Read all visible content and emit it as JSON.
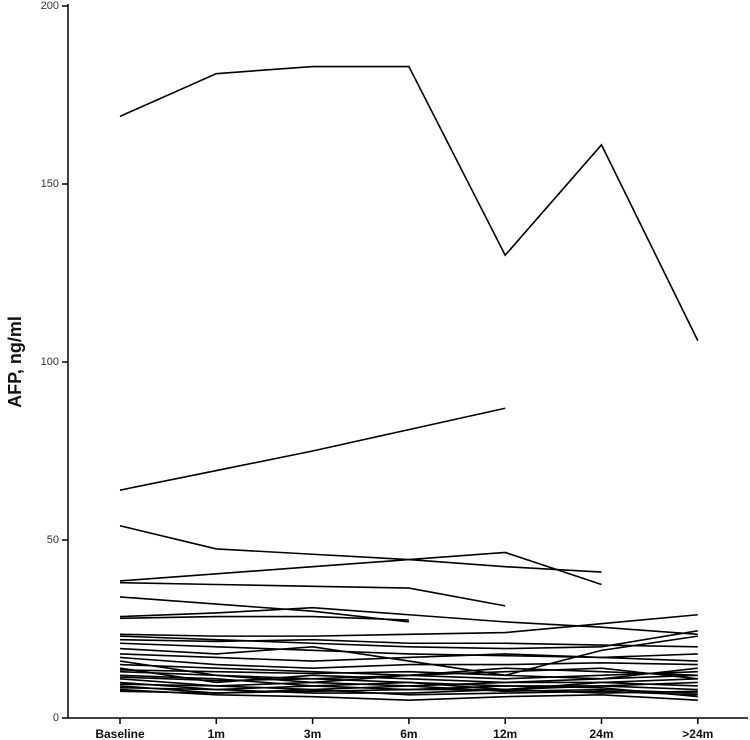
{
  "chart_data": {
    "type": "line",
    "y_label": "AFP, ng/ml",
    "color": "#000000",
    "categories": [
      "Baseline",
      "1m",
      "3m",
      "6m",
      "12m",
      "24m",
      ">24m"
    ],
    "ylim": [
      0,
      200
    ],
    "yticks": [
      0,
      50,
      100,
      150,
      200
    ],
    "series": [
      {
        "values": [
          169,
          181,
          183,
          183,
          130,
          161,
          106
        ]
      },
      {
        "values": [
          64,
          69.5,
          75,
          81,
          87,
          null,
          null
        ]
      },
      {
        "values": [
          54,
          47.5,
          46,
          44.5,
          42.5,
          41,
          null
        ]
      },
      {
        "values": [
          38.5,
          40.5,
          42.5,
          44.5,
          46.5,
          37.5,
          null
        ]
      },
      {
        "values": [
          38,
          37.5,
          37,
          36.5,
          31.5,
          null,
          null
        ]
      },
      {
        "values": [
          34,
          32,
          30,
          27,
          null,
          null,
          null
        ]
      },
      {
        "values": [
          28.5,
          29.5,
          31,
          29,
          27,
          25.5,
          23.5
        ]
      },
      {
        "values": [
          28,
          28.5,
          28.5,
          27.5,
          null,
          null,
          null
        ]
      },
      {
        "values": [
          23.5,
          23,
          23,
          23.5,
          24,
          26.5,
          29
        ]
      },
      {
        "values": [
          23,
          22,
          21,
          20,
          19.5,
          20,
          24.5
        ]
      },
      {
        "values": [
          22,
          21.5,
          22,
          21,
          21,
          20.5,
          20
        ]
      },
      {
        "values": [
          21,
          20,
          19,
          18,
          17.5,
          17,
          18
        ]
      },
      {
        "values": [
          19.5,
          18,
          20,
          16,
          12,
          19,
          23
        ]
      },
      {
        "values": [
          18,
          17,
          16,
          17,
          18,
          17,
          16
        ]
      },
      {
        "values": [
          17,
          15,
          14,
          15,
          15,
          15.5,
          15
        ]
      },
      {
        "values": [
          16,
          12,
          10,
          12,
          14,
          13,
          12
        ]
      },
      {
        "values": [
          15,
          14,
          13,
          12,
          11,
          12,
          13
        ]
      },
      {
        "values": [
          14,
          10,
          12,
          11,
          10,
          10,
          9
        ]
      },
      {
        "values": [
          13,
          12,
          11,
          10,
          9,
          9,
          8
        ]
      },
      {
        "values": [
          12,
          11,
          9,
          10,
          8,
          10,
          11
        ]
      },
      {
        "values": [
          11,
          9,
          8,
          9,
          10,
          11,
          12
        ]
      },
      {
        "values": [
          10,
          8,
          9,
          8,
          8,
          9,
          10
        ]
      },
      {
        "values": [
          9.5,
          9,
          10,
          9,
          7.5,
          8,
          7
        ]
      },
      {
        "values": [
          9,
          7,
          7.5,
          8,
          9,
          8.5,
          6
        ]
      },
      {
        "values": [
          8.5,
          8,
          7,
          7,
          8,
          7,
          7.5
        ]
      },
      {
        "values": [
          8,
          6.5,
          6,
          5,
          6,
          6.5,
          5
        ]
      },
      {
        "values": [
          7.5,
          7,
          8,
          6.5,
          7,
          7.5,
          6.5
        ]
      },
      {
        "values": [
          13.5,
          13,
          12.5,
          13,
          12,
          11,
          14
        ]
      },
      {
        "values": [
          11.5,
          10.5,
          11,
          12,
          13,
          14,
          11
        ]
      }
    ]
  }
}
